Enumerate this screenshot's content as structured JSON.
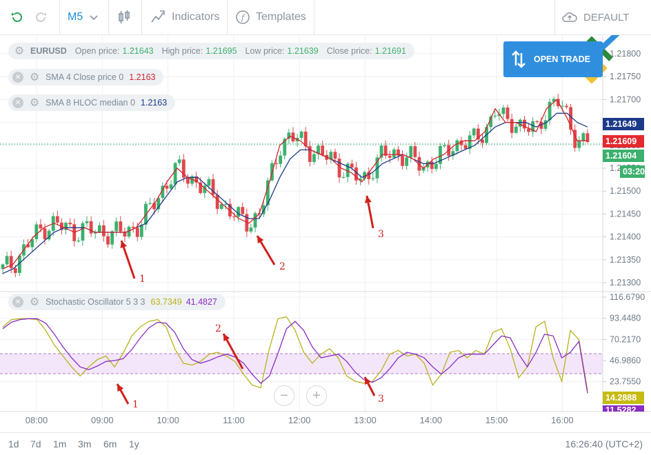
{
  "toolbar": {
    "timeframe": "M5",
    "indicators_label": "Indicators",
    "templates_label": "Templates",
    "profile_label": "DEFAULT"
  },
  "symbol_info": {
    "symbol": "EURUSD",
    "open_label": "Open price:",
    "open_value": "1.21643",
    "high_label": "High price:",
    "high_value": "1.21695",
    "low_label": "Low price:",
    "low_value": "1.21639",
    "close_label": "Close price:",
    "close_value": "1.21691"
  },
  "indicators": {
    "sma4": {
      "label": "SMA 4 Close price 0",
      "value": "1.2163",
      "color": "#d0262d"
    },
    "sma8": {
      "label": "SMA 8 HLOC median 0",
      "value": "1.2163",
      "color": "#1d3a8a"
    },
    "stoch": {
      "label": "Stochastic Oscillator 5 3 3",
      "k_value": "63.7349",
      "d_value": "41.4827",
      "k_color": "#b8b21a",
      "d_color": "#8a2cc0"
    }
  },
  "open_trade": {
    "label": "OPEN TRADE",
    "color": "#2f8fde"
  },
  "price_axis": {
    "ticks": [
      "1.21800",
      "1.21750",
      "1.21700",
      "1.21650",
      "1.21600",
      "1.21550",
      "1.21500",
      "1.21450",
      "1.21400",
      "1.21350",
      "1.21300"
    ],
    "tags": [
      {
        "value": "1.21649",
        "color": "#1d3a8a"
      },
      {
        "value": "1.21609",
        "color": "#e32a2f"
      },
      {
        "value": "1.21604",
        "color": "#3cb06d"
      },
      {
        "value": "03:20",
        "color": "#3cb06d"
      }
    ]
  },
  "osc_axis": {
    "ticks": [
      "116.6790",
      "93.4480",
      "70.2170",
      "46.9860",
      "23.7550"
    ],
    "tags": [
      {
        "value": "14.2888",
        "color": "#c6bb12"
      },
      {
        "value": "11.5282",
        "color": "#8a2cc0"
      }
    ]
  },
  "time_axis": [
    "08:00",
    "09:00",
    "10:00",
    "11:00",
    "12:00",
    "13:00",
    "14:00",
    "15:00",
    "16:00"
  ],
  "annotations": [
    "1",
    "2",
    "3",
    "1",
    "2",
    "3"
  ],
  "bottombar": {
    "ranges": [
      "1d",
      "7d",
      "1m",
      "3m",
      "6m",
      "1y"
    ],
    "clock": "16:26:40 (UTC+2)"
  },
  "colors": {
    "bull": "#3cb06d",
    "bear": "#e0474c",
    "arrow": "#d0201c"
  },
  "chart_data": {
    "type": "candlestick",
    "price": {
      "ylim": [
        1.213,
        1.2182
      ],
      "series_sma4": [
        1.2133,
        1.2134,
        1.2137,
        1.214,
        1.2142,
        1.2143,
        1.2142,
        1.2141,
        1.2142,
        1.2141,
        1.2141,
        1.2141,
        1.2141,
        1.2142,
        1.2145,
        1.2148,
        1.2152,
        1.2155,
        1.2153,
        1.2152,
        1.215,
        1.2148,
        1.2146,
        1.2144,
        1.2143,
        1.2145,
        1.2152,
        1.216,
        1.2162,
        1.2161,
        1.2159,
        1.2158,
        1.2157,
        1.2155,
        1.2154,
        1.2152,
        1.2155,
        1.2158,
        1.2158,
        1.2158,
        1.2157,
        1.2155,
        1.2157,
        1.2158,
        1.216,
        1.2161,
        1.2161,
        1.2163,
        1.2168,
        1.2165,
        1.2165,
        1.2164,
        1.2163,
        1.2168,
        1.217,
        1.2166,
        1.2161,
        1.2161
      ],
      "series_sma8": [
        1.2132,
        1.2133,
        1.2135,
        1.2137,
        1.2139,
        1.2141,
        1.2142,
        1.2142,
        1.2142,
        1.2141,
        1.2141,
        1.2141,
        1.2141,
        1.2142,
        1.2143,
        1.2146,
        1.2149,
        1.2152,
        1.2153,
        1.2153,
        1.2151,
        1.2149,
        1.2147,
        1.2145,
        1.2144,
        1.2144,
        1.2148,
        1.2153,
        1.2157,
        1.2159,
        1.2159,
        1.2158,
        1.2157,
        1.2156,
        1.2155,
        1.2153,
        1.2154,
        1.2156,
        1.2157,
        1.2158,
        1.2157,
        1.2156,
        1.2156,
        1.2157,
        1.2158,
        1.2159,
        1.216,
        1.2162,
        1.2164,
        1.2165,
        1.2165,
        1.2165,
        1.2164,
        1.2165,
        1.2167,
        1.2167,
        1.2165,
        1.2164
      ]
    },
    "oscillator": {
      "ylim": [
        0,
        116.679
      ],
      "band": [
        40,
        60
      ],
      "k": [
        84,
        92,
        93,
        93,
        92,
        80,
        64,
        52,
        40,
        30,
        40,
        48,
        52,
        40,
        55,
        74,
        84,
        90,
        92,
        84,
        60,
        44,
        42,
        46,
        54,
        56,
        52,
        46,
        32,
        20,
        17,
        60,
        93,
        95,
        80,
        56,
        44,
        54,
        60,
        50,
        30,
        24,
        22,
        24,
        36,
        54,
        58,
        52,
        54,
        44,
        20,
        32,
        56,
        58,
        50,
        58,
        54,
        78,
        82,
        60,
        28,
        40,
        84,
        90,
        50,
        24,
        80,
        70,
        14
      ],
      "d": [
        82,
        89,
        92,
        93,
        93,
        88,
        76,
        62,
        50,
        40,
        37,
        41,
        46,
        47,
        49,
        59,
        72,
        83,
        89,
        88,
        78,
        60,
        48,
        44,
        47,
        51,
        54,
        51,
        44,
        32,
        22,
        30,
        55,
        82,
        90,
        80,
        62,
        50,
        52,
        54,
        46,
        34,
        26,
        23,
        28,
        38,
        50,
        56,
        54,
        50,
        40,
        32,
        40,
        50,
        54,
        54,
        54,
        64,
        74,
        72,
        54,
        40,
        56,
        76,
        74,
        50,
        56,
        68,
        11
      ]
    }
  }
}
